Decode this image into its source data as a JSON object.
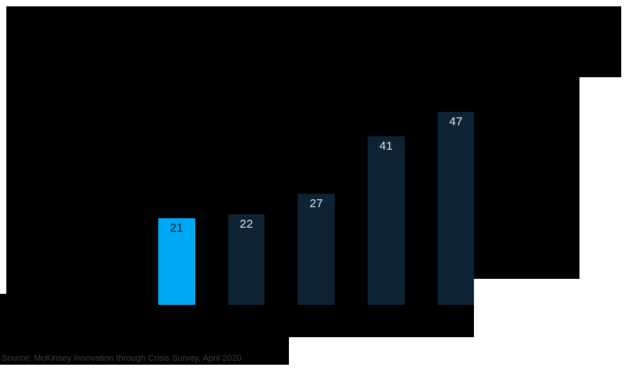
{
  "chart_data": {
    "type": "bar",
    "values": [
      21,
      22,
      27,
      41,
      47
    ],
    "data_labels": [
      "21",
      "22",
      "27",
      "41",
      "47"
    ],
    "highlight_index": 0,
    "ylim": [
      0,
      50
    ],
    "grid": false,
    "legend": false,
    "axis_labels_visible": false,
    "colors": {
      "highlight_bar": "#00a9f4",
      "default_bar": "#0d2333",
      "label_on_highlight": "#051c2c",
      "label_on_default": "#e4e6e8"
    }
  },
  "footer": {
    "source_note": "Source: McKinsey Innovation through Crisis Survey, April 2020"
  },
  "page": {
    "background": "#ffffff",
    "panel_color": "#000000"
  }
}
